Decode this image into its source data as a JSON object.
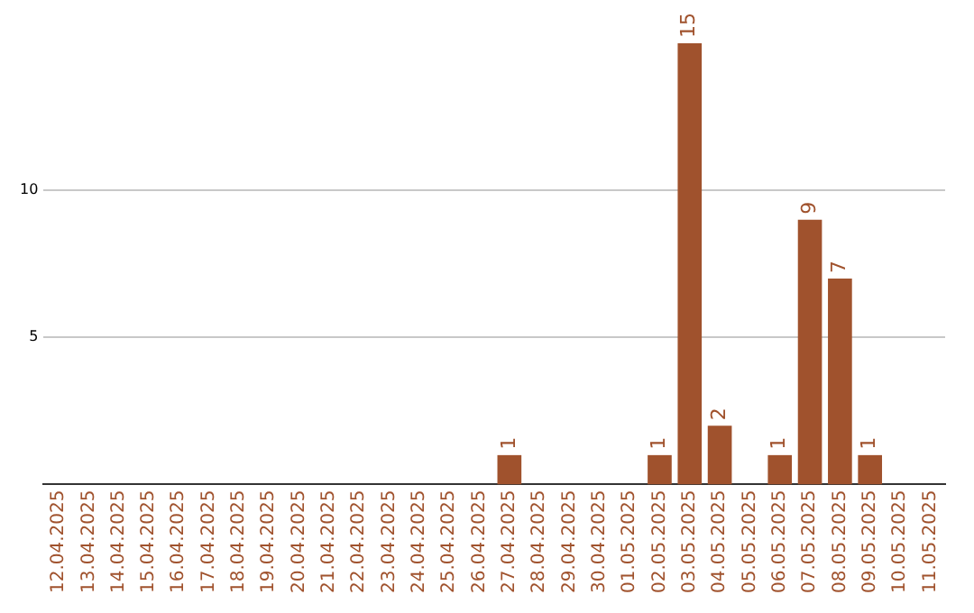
{
  "chart_data": {
    "type": "bar",
    "categories": [
      "12.04.2025",
      "13.04.2025",
      "14.04.2025",
      "15.04.2025",
      "16.04.2025",
      "17.04.2025",
      "18.04.2025",
      "19.04.2025",
      "20.04.2025",
      "21.04.2025",
      "22.04.2025",
      "23.04.2025",
      "24.04.2025",
      "25.04.2025",
      "26.04.2025",
      "27.04.2025",
      "28.04.2025",
      "29.04.2025",
      "30.04.2025",
      "01.05.2025",
      "02.05.2025",
      "03.05.2025",
      "04.05.2025",
      "05.05.2025",
      "06.05.2025",
      "07.05.2025",
      "08.05.2025",
      "09.05.2025",
      "10.05.2025",
      "11.05.2025"
    ],
    "values": [
      0,
      0,
      0,
      0,
      0,
      0,
      0,
      0,
      0,
      0,
      0,
      0,
      0,
      0,
      0,
      1,
      0,
      0,
      0,
      0,
      1,
      15,
      2,
      0,
      1,
      9,
      7,
      1,
      0,
      0
    ],
    "value_labels": [
      null,
      null,
      null,
      null,
      null,
      null,
      null,
      null,
      null,
      null,
      null,
      null,
      null,
      null,
      null,
      "1",
      null,
      null,
      null,
      null,
      "1",
      "15",
      "2",
      null,
      "1",
      "9",
      "7",
      "1",
      null,
      null
    ],
    "color": "#a0522d",
    "ylim": [
      0,
      15
    ],
    "yticks": [
      5,
      10
    ],
    "grid": "y",
    "legend": false
  }
}
